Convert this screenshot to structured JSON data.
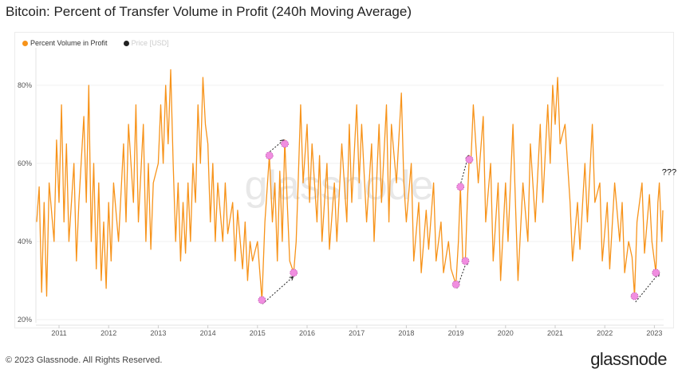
{
  "title": "Bitcoin: Percent of Transfer Volume in Profit (240h Moving Average)",
  "footer": "© 2023 Glassnode. All Rights Reserved.",
  "brand": "glassnode",
  "watermark": "glassnode",
  "chart_data": {
    "type": "line",
    "legend": [
      {
        "name": "Percent Volume in Profit",
        "color": "#f7931a",
        "active": true
      },
      {
        "name": "Price [USD]",
        "color": "#222222",
        "active": false
      }
    ],
    "legend_placement": "top-left",
    "ylim": [
      20,
      85
    ],
    "yticks": [
      20,
      40,
      60,
      80
    ],
    "ytick_labels": [
      "20%",
      "40%",
      "60%",
      "80%"
    ],
    "xticks": [
      "2011",
      "2012",
      "2013",
      "2014",
      "2015",
      "2016",
      "2017",
      "2018",
      "2019",
      "2020",
      "2021",
      "2022",
      "2023"
    ],
    "grid": true,
    "series": [
      {
        "name": "Percent Volume in Profit",
        "color": "#f7931a",
        "points": [
          [
            2010.55,
            45
          ],
          [
            2010.6,
            54
          ],
          [
            2010.65,
            27
          ],
          [
            2010.7,
            50
          ],
          [
            2010.75,
            26
          ],
          [
            2010.8,
            55
          ],
          [
            2010.9,
            40
          ],
          [
            2010.95,
            66
          ],
          [
            2011.0,
            50
          ],
          [
            2011.05,
            75
          ],
          [
            2011.1,
            45
          ],
          [
            2011.15,
            65
          ],
          [
            2011.2,
            40
          ],
          [
            2011.3,
            60
          ],
          [
            2011.35,
            35
          ],
          [
            2011.4,
            50
          ],
          [
            2011.5,
            72
          ],
          [
            2011.55,
            50
          ],
          [
            2011.6,
            80
          ],
          [
            2011.65,
            40
          ],
          [
            2011.7,
            60
          ],
          [
            2011.75,
            33
          ],
          [
            2011.8,
            55
          ],
          [
            2011.85,
            30
          ],
          [
            2011.9,
            45
          ],
          [
            2011.95,
            28
          ],
          [
            2012.0,
            50
          ],
          [
            2012.05,
            35
          ],
          [
            2012.1,
            55
          ],
          [
            2012.2,
            40
          ],
          [
            2012.3,
            65
          ],
          [
            2012.35,
            45
          ],
          [
            2012.4,
            70
          ],
          [
            2012.5,
            50
          ],
          [
            2012.55,
            75
          ],
          [
            2012.6,
            45
          ],
          [
            2012.7,
            70
          ],
          [
            2012.75,
            40
          ],
          [
            2012.8,
            60
          ],
          [
            2012.85,
            38
          ],
          [
            2012.9,
            55
          ],
          [
            2013.0,
            60
          ],
          [
            2013.05,
            75
          ],
          [
            2013.1,
            60
          ],
          [
            2013.15,
            80
          ],
          [
            2013.2,
            65
          ],
          [
            2013.25,
            84
          ],
          [
            2013.3,
            60
          ],
          [
            2013.35,
            40
          ],
          [
            2013.4,
            55
          ],
          [
            2013.45,
            35
          ],
          [
            2013.5,
            50
          ],
          [
            2013.55,
            37
          ],
          [
            2013.6,
            55
          ],
          [
            2013.65,
            40
          ],
          [
            2013.7,
            60
          ],
          [
            2013.75,
            50
          ],
          [
            2013.8,
            75
          ],
          [
            2013.85,
            60
          ],
          [
            2013.9,
            82
          ],
          [
            2013.95,
            70
          ],
          [
            2014.0,
            65
          ],
          [
            2014.05,
            45
          ],
          [
            2014.1,
            60
          ],
          [
            2014.15,
            40
          ],
          [
            2014.2,
            55
          ],
          [
            2014.3,
            40
          ],
          [
            2014.35,
            55
          ],
          [
            2014.4,
            42
          ],
          [
            2014.5,
            50
          ],
          [
            2014.55,
            35
          ],
          [
            2014.6,
            48
          ],
          [
            2014.7,
            33
          ],
          [
            2014.75,
            45
          ],
          [
            2014.8,
            30
          ],
          [
            2014.85,
            40
          ],
          [
            2014.9,
            35
          ],
          [
            2015.0,
            40
          ],
          [
            2015.09,
            25
          ],
          [
            2015.15,
            45
          ],
          [
            2015.24,
            62
          ],
          [
            2015.3,
            45
          ],
          [
            2015.35,
            55
          ],
          [
            2015.4,
            35
          ],
          [
            2015.45,
            58
          ],
          [
            2015.5,
            40
          ],
          [
            2015.55,
            66
          ],
          [
            2015.6,
            50
          ],
          [
            2015.65,
            35
          ],
          [
            2015.73,
            32
          ],
          [
            2015.78,
            40
          ],
          [
            2015.82,
            55
          ],
          [
            2015.87,
            75
          ],
          [
            2015.92,
            55
          ],
          [
            2016.0,
            70
          ],
          [
            2016.05,
            50
          ],
          [
            2016.1,
            65
          ],
          [
            2016.2,
            45
          ],
          [
            2016.25,
            62
          ],
          [
            2016.3,
            40
          ],
          [
            2016.4,
            60
          ],
          [
            2016.45,
            38
          ],
          [
            2016.55,
            55
          ],
          [
            2016.6,
            40
          ],
          [
            2016.7,
            65
          ],
          [
            2016.8,
            45
          ],
          [
            2016.85,
            70
          ],
          [
            2016.9,
            50
          ],
          [
            2017.0,
            75
          ],
          [
            2017.05,
            55
          ],
          [
            2017.1,
            70
          ],
          [
            2017.2,
            45
          ],
          [
            2017.3,
            65
          ],
          [
            2017.35,
            40
          ],
          [
            2017.45,
            70
          ],
          [
            2017.5,
            50
          ],
          [
            2017.6,
            75
          ],
          [
            2017.65,
            45
          ],
          [
            2017.7,
            70
          ],
          [
            2017.8,
            55
          ],
          [
            2017.9,
            78
          ],
          [
            2017.95,
            55
          ],
          [
            2018.0,
            45
          ],
          [
            2018.1,
            60
          ],
          [
            2018.15,
            35
          ],
          [
            2018.25,
            50
          ],
          [
            2018.3,
            32
          ],
          [
            2018.4,
            48
          ],
          [
            2018.45,
            38
          ],
          [
            2018.55,
            55
          ],
          [
            2018.6,
            35
          ],
          [
            2018.7,
            45
          ],
          [
            2018.75,
            32
          ],
          [
            2018.85,
            40
          ],
          [
            2018.9,
            33
          ],
          [
            2019.0,
            29
          ],
          [
            2019.05,
            40
          ],
          [
            2019.09,
            54
          ],
          [
            2019.14,
            35
          ],
          [
            2019.19,
            35
          ],
          [
            2019.23,
            50
          ],
          [
            2019.27,
            62
          ],
          [
            2019.3,
            60
          ],
          [
            2019.35,
            75
          ],
          [
            2019.45,
            55
          ],
          [
            2019.55,
            72
          ],
          [
            2019.6,
            45
          ],
          [
            2019.7,
            60
          ],
          [
            2019.75,
            35
          ],
          [
            2019.85,
            55
          ],
          [
            2019.9,
            30
          ],
          [
            2020.0,
            55
          ],
          [
            2020.05,
            40
          ],
          [
            2020.15,
            70
          ],
          [
            2020.2,
            50
          ],
          [
            2020.25,
            30
          ],
          [
            2020.35,
            55
          ],
          [
            2020.45,
            40
          ],
          [
            2020.5,
            65
          ],
          [
            2020.6,
            45
          ],
          [
            2020.7,
            70
          ],
          [
            2020.75,
            50
          ],
          [
            2020.85,
            75
          ],
          [
            2020.9,
            60
          ],
          [
            2020.95,
            80
          ],
          [
            2021.0,
            70
          ],
          [
            2021.05,
            82
          ],
          [
            2021.1,
            65
          ],
          [
            2021.2,
            70
          ],
          [
            2021.3,
            50
          ],
          [
            2021.35,
            35
          ],
          [
            2021.45,
            50
          ],
          [
            2021.5,
            38
          ],
          [
            2021.6,
            60
          ],
          [
            2021.65,
            45
          ],
          [
            2021.75,
            70
          ],
          [
            2021.8,
            50
          ],
          [
            2021.9,
            55
          ],
          [
            2021.95,
            35
          ],
          [
            2022.05,
            50
          ],
          [
            2022.1,
            33
          ],
          [
            2022.2,
            55
          ],
          [
            2022.3,
            40
          ],
          [
            2022.35,
            50
          ],
          [
            2022.4,
            32
          ],
          [
            2022.48,
            40
          ],
          [
            2022.55,
            36
          ],
          [
            2022.6,
            26
          ],
          [
            2022.65,
            45
          ],
          [
            2022.75,
            55
          ],
          [
            2022.8,
            37
          ],
          [
            2022.9,
            52
          ],
          [
            2022.95,
            40
          ],
          [
            2023.03,
            32
          ],
          [
            2023.07,
            50
          ],
          [
            2023.1,
            55
          ],
          [
            2023.15,
            40
          ],
          [
            2023.17,
            48
          ]
        ]
      }
    ],
    "annotations": {
      "markers": [
        [
          2015.09,
          25
        ],
        [
          2015.73,
          32
        ],
        [
          2015.24,
          62
        ],
        [
          2015.55,
          65
        ],
        [
          2019.0,
          29
        ],
        [
          2019.19,
          35
        ],
        [
          2019.09,
          54
        ],
        [
          2019.27,
          61
        ],
        [
          2022.6,
          26
        ],
        [
          2023.03,
          32
        ]
      ],
      "arrows": [
        [
          [
            2015.1,
            24
          ],
          [
            2015.72,
            31
          ]
        ],
        [
          [
            2015.25,
            63
          ],
          [
            2015.53,
            66
          ]
        ],
        [
          [
            2019.02,
            28
          ],
          [
            2019.22,
            35
          ]
        ],
        [
          [
            2019.1,
            55
          ],
          [
            2019.25,
            62
          ]
        ],
        [
          [
            2022.62,
            24.5
          ],
          [
            2023.1,
            32
          ]
        ]
      ],
      "text": "???",
      "text_at": [
        2023.15,
        57
      ],
      "marker_color": "#f08ee0"
    }
  }
}
